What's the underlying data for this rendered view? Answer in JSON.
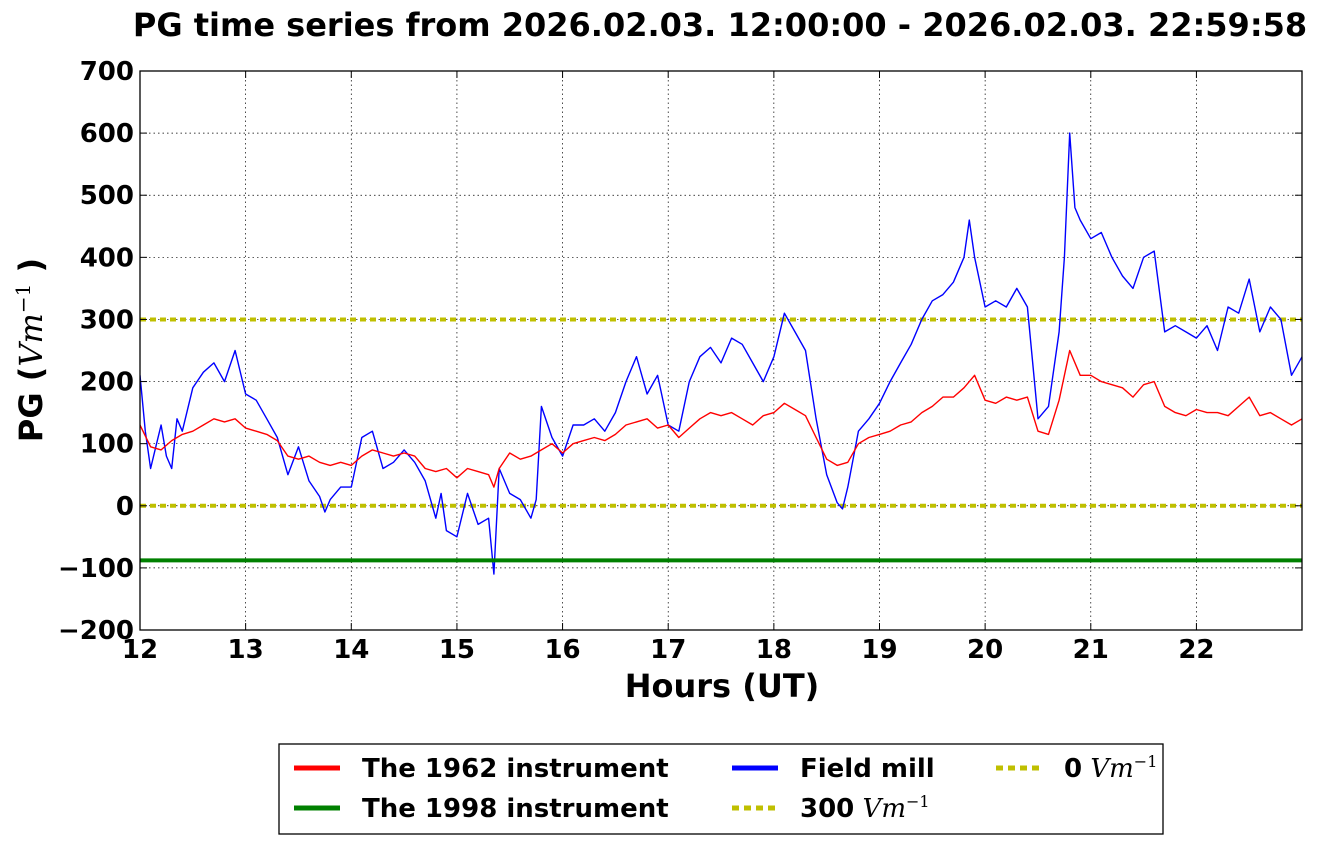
{
  "chart_data": {
    "type": "line",
    "title": "PG time series from 2026.02.03. 12:00:00 - 2026.02.03. 22:59:58",
    "xlabel": "Hours (UT)",
    "ylabel_prefix": "PG (",
    "ylabel_unit": "Vm",
    "ylabel_exp": "−1",
    "ylabel_suffix": " )",
    "xlim": [
      12,
      22.9994
    ],
    "ylim": [
      -200,
      700
    ],
    "xticks": [
      12,
      13,
      14,
      15,
      16,
      17,
      18,
      19,
      20,
      21,
      22
    ],
    "yticks": [
      -200,
      -100,
      0,
      100,
      200,
      300,
      400,
      500,
      600,
      700
    ],
    "ytick_labels": [
      "−200",
      "−100",
      "0",
      "100",
      "200",
      "300",
      "400",
      "500",
      "600",
      "700"
    ],
    "grid": true,
    "legend_position": "bottom",
    "series": [
      {
        "name": "The 1962 instrument",
        "color": "#ff0000",
        "points": [
          [
            12.0,
            130
          ],
          [
            12.1,
            95
          ],
          [
            12.2,
            90
          ],
          [
            12.3,
            105
          ],
          [
            12.4,
            115
          ],
          [
            12.5,
            120
          ],
          [
            12.6,
            130
          ],
          [
            12.7,
            140
          ],
          [
            12.8,
            135
          ],
          [
            12.9,
            140
          ],
          [
            13.0,
            125
          ],
          [
            13.1,
            120
          ],
          [
            13.2,
            115
          ],
          [
            13.3,
            105
          ],
          [
            13.4,
            80
          ],
          [
            13.5,
            75
          ],
          [
            13.6,
            80
          ],
          [
            13.7,
            70
          ],
          [
            13.8,
            65
          ],
          [
            13.9,
            70
          ],
          [
            14.0,
            65
          ],
          [
            14.1,
            80
          ],
          [
            14.2,
            90
          ],
          [
            14.3,
            85
          ],
          [
            14.4,
            80
          ],
          [
            14.5,
            85
          ],
          [
            14.6,
            80
          ],
          [
            14.7,
            60
          ],
          [
            14.8,
            55
          ],
          [
            14.9,
            60
          ],
          [
            15.0,
            45
          ],
          [
            15.1,
            60
          ],
          [
            15.2,
            55
          ],
          [
            15.3,
            50
          ],
          [
            15.35,
            30
          ],
          [
            15.4,
            60
          ],
          [
            15.5,
            85
          ],
          [
            15.6,
            75
          ],
          [
            15.7,
            80
          ],
          [
            15.8,
            90
          ],
          [
            15.9,
            100
          ],
          [
            16.0,
            85
          ],
          [
            16.1,
            100
          ],
          [
            16.2,
            105
          ],
          [
            16.3,
            110
          ],
          [
            16.4,
            105
          ],
          [
            16.5,
            115
          ],
          [
            16.6,
            130
          ],
          [
            16.7,
            135
          ],
          [
            16.8,
            140
          ],
          [
            16.9,
            125
          ],
          [
            17.0,
            130
          ],
          [
            17.1,
            110
          ],
          [
            17.2,
            125
          ],
          [
            17.3,
            140
          ],
          [
            17.4,
            150
          ],
          [
            17.5,
            145
          ],
          [
            17.6,
            150
          ],
          [
            17.7,
            140
          ],
          [
            17.8,
            130
          ],
          [
            17.9,
            145
          ],
          [
            18.0,
            150
          ],
          [
            18.1,
            165
          ],
          [
            18.2,
            155
          ],
          [
            18.3,
            145
          ],
          [
            18.4,
            110
          ],
          [
            18.5,
            75
          ],
          [
            18.6,
            65
          ],
          [
            18.7,
            70
          ],
          [
            18.8,
            100
          ],
          [
            18.9,
            110
          ],
          [
            19.0,
            115
          ],
          [
            19.1,
            120
          ],
          [
            19.2,
            130
          ],
          [
            19.3,
            135
          ],
          [
            19.4,
            150
          ],
          [
            19.5,
            160
          ],
          [
            19.6,
            175
          ],
          [
            19.7,
            175
          ],
          [
            19.8,
            190
          ],
          [
            19.9,
            210
          ],
          [
            20.0,
            170
          ],
          [
            20.1,
            165
          ],
          [
            20.2,
            175
          ],
          [
            20.3,
            170
          ],
          [
            20.4,
            175
          ],
          [
            20.5,
            120
          ],
          [
            20.6,
            115
          ],
          [
            20.7,
            170
          ],
          [
            20.8,
            250
          ],
          [
            20.9,
            210
          ],
          [
            21.0,
            210
          ],
          [
            21.1,
            200
          ],
          [
            21.2,
            195
          ],
          [
            21.3,
            190
          ],
          [
            21.4,
            175
          ],
          [
            21.5,
            195
          ],
          [
            21.6,
            200
          ],
          [
            21.7,
            160
          ],
          [
            21.8,
            150
          ],
          [
            21.9,
            145
          ],
          [
            22.0,
            155
          ],
          [
            22.1,
            150
          ],
          [
            22.2,
            150
          ],
          [
            22.3,
            145
          ],
          [
            22.4,
            160
          ],
          [
            22.5,
            175
          ],
          [
            22.6,
            145
          ],
          [
            22.7,
            150
          ],
          [
            22.8,
            140
          ],
          [
            22.9,
            130
          ],
          [
            23.0,
            140
          ]
        ]
      },
      {
        "name": "The 1998 instrument",
        "color": "#008000",
        "points": [
          [
            12.0,
            -88
          ],
          [
            22.9994,
            -88
          ]
        ]
      },
      {
        "name": "Field mill",
        "color": "#0000ff",
        "points": [
          [
            12.0,
            210
          ],
          [
            12.05,
            120
          ],
          [
            12.1,
            60
          ],
          [
            12.15,
            95
          ],
          [
            12.2,
            130
          ],
          [
            12.25,
            80
          ],
          [
            12.3,
            60
          ],
          [
            12.35,
            140
          ],
          [
            12.4,
            120
          ],
          [
            12.5,
            190
          ],
          [
            12.6,
            215
          ],
          [
            12.7,
            230
          ],
          [
            12.8,
            200
          ],
          [
            12.9,
            250
          ],
          [
            13.0,
            180
          ],
          [
            13.1,
            170
          ],
          [
            13.2,
            140
          ],
          [
            13.3,
            110
          ],
          [
            13.4,
            50
          ],
          [
            13.5,
            95
          ],
          [
            13.6,
            40
          ],
          [
            13.7,
            15
          ],
          [
            13.75,
            -10
          ],
          [
            13.8,
            10
          ],
          [
            13.9,
            30
          ],
          [
            14.0,
            30
          ],
          [
            14.1,
            110
          ],
          [
            14.2,
            120
          ],
          [
            14.3,
            60
          ],
          [
            14.4,
            70
          ],
          [
            14.5,
            90
          ],
          [
            14.6,
            70
          ],
          [
            14.7,
            40
          ],
          [
            14.8,
            -20
          ],
          [
            14.85,
            20
          ],
          [
            14.9,
            -40
          ],
          [
            15.0,
            -50
          ],
          [
            15.1,
            20
          ],
          [
            15.2,
            -30
          ],
          [
            15.3,
            -20
          ],
          [
            15.35,
            -110
          ],
          [
            15.4,
            60
          ],
          [
            15.5,
            20
          ],
          [
            15.6,
            10
          ],
          [
            15.7,
            -20
          ],
          [
            15.75,
            10
          ],
          [
            15.8,
            160
          ],
          [
            15.9,
            110
          ],
          [
            16.0,
            80
          ],
          [
            16.1,
            130
          ],
          [
            16.2,
            130
          ],
          [
            16.3,
            140
          ],
          [
            16.4,
            120
          ],
          [
            16.5,
            150
          ],
          [
            16.6,
            200
          ],
          [
            16.7,
            240
          ],
          [
            16.8,
            180
          ],
          [
            16.9,
            210
          ],
          [
            17.0,
            130
          ],
          [
            17.1,
            120
          ],
          [
            17.2,
            200
          ],
          [
            17.3,
            240
          ],
          [
            17.4,
            255
          ],
          [
            17.5,
            230
          ],
          [
            17.6,
            270
          ],
          [
            17.7,
            260
          ],
          [
            17.8,
            230
          ],
          [
            17.9,
            200
          ],
          [
            18.0,
            240
          ],
          [
            18.1,
            310
          ],
          [
            18.2,
            280
          ],
          [
            18.3,
            250
          ],
          [
            18.4,
            140
          ],
          [
            18.5,
            50
          ],
          [
            18.6,
            5
          ],
          [
            18.65,
            -5
          ],
          [
            18.7,
            30
          ],
          [
            18.8,
            120
          ],
          [
            18.9,
            140
          ],
          [
            19.0,
            165
          ],
          [
            19.1,
            200
          ],
          [
            19.2,
            230
          ],
          [
            19.3,
            260
          ],
          [
            19.4,
            300
          ],
          [
            19.5,
            330
          ],
          [
            19.6,
            340
          ],
          [
            19.7,
            360
          ],
          [
            19.8,
            400
          ],
          [
            19.85,
            460
          ],
          [
            19.9,
            400
          ],
          [
            20.0,
            320
          ],
          [
            20.1,
            330
          ],
          [
            20.2,
            320
          ],
          [
            20.3,
            350
          ],
          [
            20.4,
            320
          ],
          [
            20.5,
            140
          ],
          [
            20.6,
            160
          ],
          [
            20.7,
            280
          ],
          [
            20.75,
            400
          ],
          [
            20.8,
            600
          ],
          [
            20.85,
            480
          ],
          [
            20.9,
            460
          ],
          [
            21.0,
            430
          ],
          [
            21.1,
            440
          ],
          [
            21.2,
            400
          ],
          [
            21.3,
            370
          ],
          [
            21.4,
            350
          ],
          [
            21.5,
            400
          ],
          [
            21.6,
            410
          ],
          [
            21.7,
            280
          ],
          [
            21.8,
            290
          ],
          [
            21.9,
            280
          ],
          [
            22.0,
            270
          ],
          [
            22.1,
            290
          ],
          [
            22.2,
            250
          ],
          [
            22.3,
            320
          ],
          [
            22.4,
            310
          ],
          [
            22.5,
            365
          ],
          [
            22.6,
            280
          ],
          [
            22.7,
            320
          ],
          [
            22.8,
            300
          ],
          [
            22.9,
            210
          ],
          [
            23.0,
            240
          ]
        ]
      }
    ],
    "reference_lines": [
      {
        "label": "300",
        "value": 300,
        "color": "#bfbf00"
      },
      {
        "label": "0",
        "value": 0,
        "color": "#bfbf00"
      }
    ],
    "legend": [
      {
        "label": "The 1962 instrument",
        "color": "#ff0000",
        "style": "solid"
      },
      {
        "label": "The 1998 instrument",
        "color": "#008000",
        "style": "solid"
      },
      {
        "label": "Field mill",
        "color": "#0000ff",
        "style": "solid"
      },
      {
        "label": "300",
        "unit": "Vm",
        "exp": "−1",
        "color": "#bfbf00",
        "style": "dotted"
      },
      {
        "label": "0",
        "unit": "Vm",
        "exp": "−1",
        "color": "#bfbf00",
        "style": "dotted"
      }
    ]
  }
}
